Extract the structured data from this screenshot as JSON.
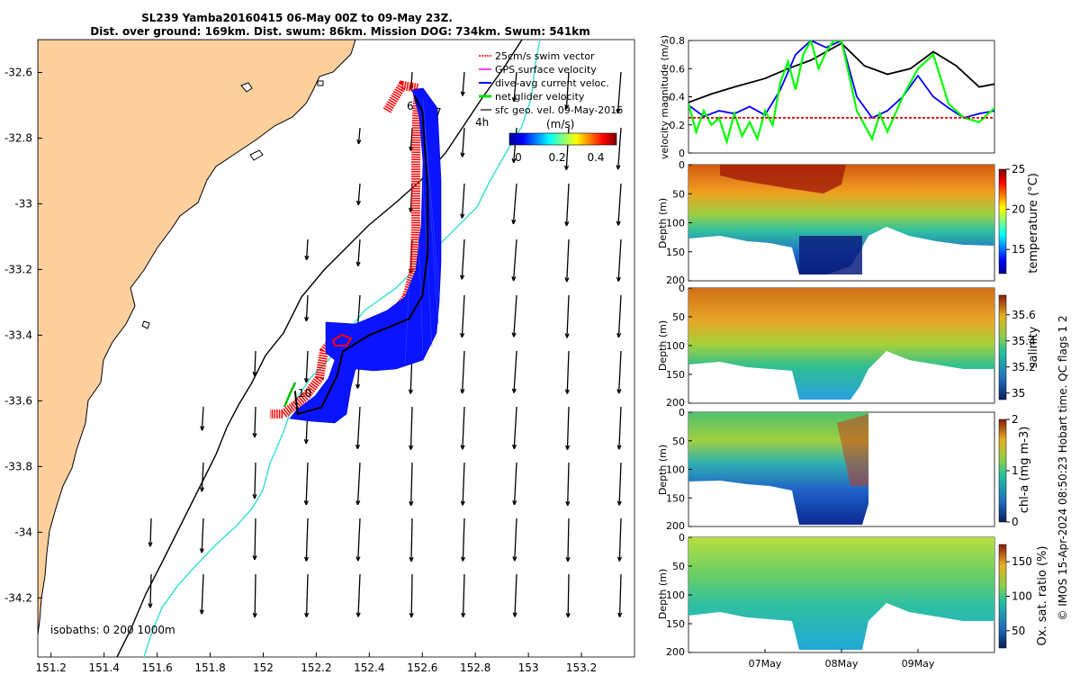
{
  "header": {
    "title_line1": "SL239 Yamba20160415 06-May 00Z to 09-May 23Z.",
    "title_line2": "Dist. over ground: 169km. Dist. swum: 86km. Mission DOG: 734km. Swum: 541km"
  },
  "side_note": "© IMOS 15-Apr-2024 08:50:23 Hobart time. QC flags 1  2",
  "colors": {
    "land": "#fccf9c",
    "swim_vector": "#ff0000",
    "gps_surface": "#ff00ff",
    "dive_avg": "#0000ff",
    "net_glider": "#00ff00",
    "sfc_geo": "#000000",
    "isobath_200": "#40e0d0",
    "isobath_1000": "#000000",
    "swim_threshold": "#d00000"
  },
  "chart_data": [
    {
      "type": "map",
      "x_ticks": [
        "151.2",
        "151.4",
        "151.6",
        "151.8",
        "152",
        "152.2",
        "152.4",
        "152.6",
        "152.8",
        "153",
        "153.2"
      ],
      "y_ticks": [
        "-32.6",
        "-32.8",
        "-33",
        "-33.2",
        "-33.4",
        "-33.6",
        "-33.8",
        "-34",
        "-34.2"
      ],
      "xlim": [
        151.15,
        153.4
      ],
      "ylim": [
        -34.38,
        -32.5
      ],
      "legend": [
        "25cm/s swim vector",
        "GPS surface velocity",
        "dive-avg current veloc.",
        "net glider velocity",
        "sfc geo. vel. 09-May-2016"
      ],
      "colorbar_label": "(m/s)",
      "colorbar_ticks": [
        "0",
        "0.2",
        "0.4"
      ],
      "colorbar_range": [
        0,
        0.5
      ],
      "track_labels": [
        "6",
        "7",
        "10"
      ],
      "scale_label": "4h",
      "isobath_note": "isobaths: 0   200  1000m",
      "glider_track": [
        [
          152.57,
          -32.67
        ],
        [
          152.6,
          -32.72
        ],
        [
          152.62,
          -32.95
        ],
        [
          152.62,
          -33.15
        ],
        [
          152.6,
          -33.28
        ],
        [
          152.55,
          -33.35
        ],
        [
          152.4,
          -33.4
        ],
        [
          152.3,
          -33.45
        ],
        [
          152.28,
          -33.52
        ],
        [
          152.22,
          -33.62
        ],
        [
          152.13,
          -33.64
        ],
        [
          152.12,
          -33.57
        ]
      ]
    },
    {
      "type": "line",
      "ylabel": "velocity magnitude (m/s)",
      "ylim": [
        0,
        0.8
      ],
      "y_ticks": [
        "0",
        "0.2",
        "0.4",
        "0.6",
        "0.8"
      ],
      "x_unit": "days since 06-May 00Z",
      "xlim": [
        0,
        4
      ],
      "series": [
        {
          "name": "sfc geo. vel.",
          "color": "#000000",
          "x": [
            0,
            0.3,
            0.6,
            1.0,
            1.3,
            1.6,
            1.8,
            2.0,
            2.3,
            2.6,
            2.9,
            3.2,
            3.5,
            3.8,
            4.0
          ],
          "y": [
            0.36,
            0.42,
            0.47,
            0.53,
            0.6,
            0.66,
            0.72,
            0.78,
            0.62,
            0.56,
            0.6,
            0.72,
            0.62,
            0.47,
            0.49
          ]
        },
        {
          "name": "dive-avg current veloc.",
          "color": "#0000ff",
          "x": [
            0,
            0.2,
            0.4,
            0.6,
            0.8,
            1.0,
            1.2,
            1.4,
            1.6,
            1.8,
            2.0,
            2.2,
            2.4,
            2.6,
            2.8,
            3.0,
            3.2,
            3.4,
            3.6,
            3.8,
            4.0
          ],
          "y": [
            0.34,
            0.26,
            0.3,
            0.28,
            0.33,
            0.27,
            0.45,
            0.7,
            0.8,
            0.75,
            0.8,
            0.4,
            0.25,
            0.3,
            0.4,
            0.55,
            0.4,
            0.32,
            0.25,
            0.28,
            0.3
          ]
        },
        {
          "name": "net glider velocity",
          "color": "#00ff00",
          "x": [
            0,
            0.1,
            0.2,
            0.3,
            0.4,
            0.5,
            0.6,
            0.7,
            0.8,
            0.9,
            1.0,
            1.1,
            1.2,
            1.3,
            1.4,
            1.5,
            1.6,
            1.7,
            1.8,
            1.9,
            2.0,
            2.2,
            2.4,
            2.5,
            2.6,
            2.8,
            3.0,
            3.2,
            3.4,
            3.6,
            3.8,
            4.0
          ],
          "y": [
            0.35,
            0.15,
            0.3,
            0.2,
            0.25,
            0.08,
            0.28,
            0.12,
            0.22,
            0.1,
            0.3,
            0.2,
            0.5,
            0.65,
            0.45,
            0.7,
            0.8,
            0.6,
            0.72,
            0.8,
            0.8,
            0.3,
            0.1,
            0.28,
            0.15,
            0.4,
            0.6,
            0.7,
            0.35,
            0.25,
            0.22,
            0.32
          ]
        },
        {
          "name": "25cm/s swim vector",
          "color": "#d00000",
          "x": [
            0,
            4
          ],
          "y": [
            0.25,
            0.25
          ]
        }
      ]
    },
    {
      "type": "heatmap",
      "ylabel": "Depth (m)",
      "colorbar_label": "temperature (°C)",
      "colorbar_ticks": [
        "15",
        "20",
        "25"
      ],
      "colorbar_range": [
        12,
        25
      ],
      "ylim": [
        0,
        200
      ],
      "y_ticks": [
        "0",
        "50",
        "100",
        "150",
        "200"
      ]
    },
    {
      "type": "heatmap",
      "ylabel": "Depth (m)",
      "colorbar_label": "salinity",
      "colorbar_ticks": [
        "35",
        "35.2",
        "35.4",
        "35.6"
      ],
      "colorbar_range": [
        34.95,
        35.75
      ],
      "ylim": [
        0,
        200
      ],
      "y_ticks": [
        "0",
        "50",
        "100",
        "150",
        "200"
      ]
    },
    {
      "type": "heatmap",
      "ylabel": "Depth (m)",
      "colorbar_label": "chl-a (mg m-3)",
      "colorbar_ticks": [
        "0",
        "1",
        "2"
      ],
      "colorbar_range": [
        0,
        2
      ],
      "ylim": [
        0,
        200
      ],
      "y_ticks": [
        "0",
        "50",
        "100",
        "150",
        "200"
      ]
    },
    {
      "type": "heatmap",
      "ylabel": "Depth (m)",
      "colorbar_label": "Ox. sat. ratio (%)",
      "colorbar_ticks": [
        "50",
        "100",
        "150"
      ],
      "colorbar_range": [
        25,
        175
      ],
      "ylim": [
        0,
        200
      ],
      "y_ticks": [
        "0",
        "50",
        "100",
        "150",
        "200"
      ],
      "x_ticks": [
        "07May",
        "08May",
        "09May"
      ]
    }
  ]
}
